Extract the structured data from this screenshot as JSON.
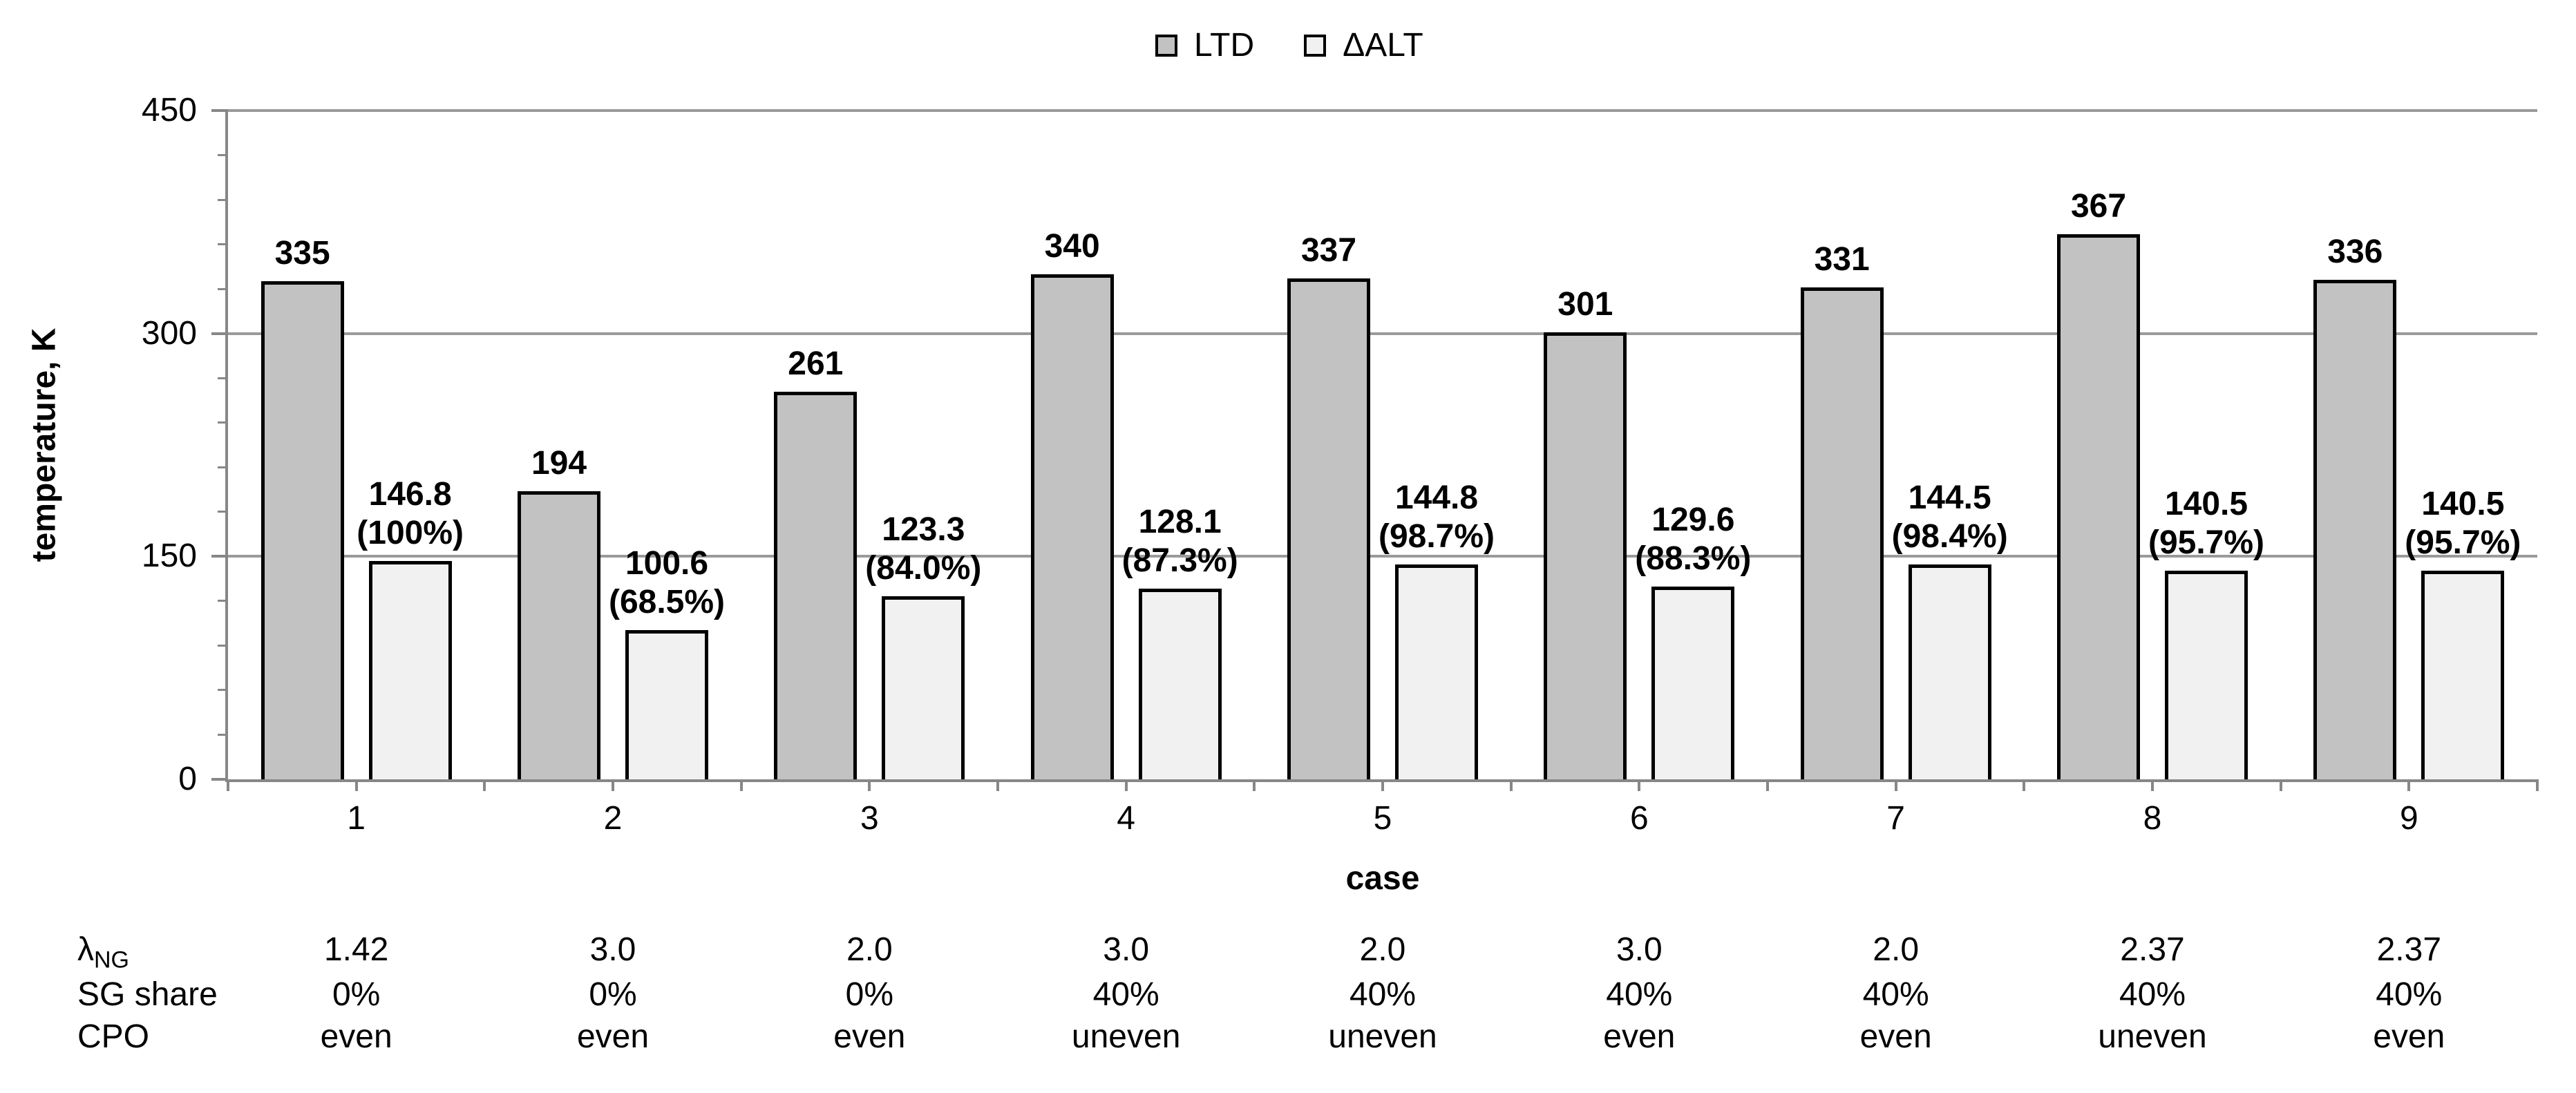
{
  "chart_data": {
    "type": "bar",
    "title": "",
    "categories": [
      "1",
      "2",
      "3",
      "4",
      "5",
      "6",
      "7",
      "8",
      "9"
    ],
    "series": [
      {
        "name": "LTD",
        "values": [
          335,
          194,
          261,
          340,
          337,
          301,
          331,
          367,
          336
        ],
        "labels": [
          "335",
          "194",
          "261",
          "340",
          "337",
          "301",
          "331",
          "367",
          "336"
        ]
      },
      {
        "name": "ΔALT",
        "values": [
          146.8,
          100.6,
          123.3,
          128.1,
          144.8,
          129.6,
          144.5,
          140.5,
          140.5
        ],
        "labels": [
          "146.8",
          "100.6",
          "123.3",
          "128.1",
          "144.8",
          "129.6",
          "144.5",
          "140.5",
          "140.5"
        ],
        "sublabels": [
          "(100%)",
          "(68.5%)",
          "(84.0%)",
          "(87.3%)",
          "(98.7%)",
          "(88.3%)",
          "(98.4%)",
          "(95.7%)",
          "(95.7%)"
        ]
      }
    ],
    "xlabel": "case",
    "ylabel": "temperature, K",
    "ylim": [
      0,
      450
    ],
    "y_major_ticks": [
      0,
      150,
      300,
      450
    ],
    "y_tick_labels": [
      "0",
      "150",
      "300",
      "450"
    ],
    "y_minor_step": 30,
    "grid": "horizontal-major",
    "legend_position": "top-center"
  },
  "annotation_table": {
    "rows": [
      {
        "key": "lambda-ng",
        "label_main": "λ",
        "label_sub": "NG",
        "values": [
          "1.42",
          "3.0",
          "2.0",
          "3.0",
          "2.0",
          "3.0",
          "2.0",
          "2.37",
          "2.37"
        ]
      },
      {
        "key": "sg-share",
        "label_main": "SG share",
        "label_sub": "",
        "values": [
          "0%",
          "0%",
          "0%",
          "40%",
          "40%",
          "40%",
          "40%",
          "40%",
          "40%"
        ]
      },
      {
        "key": "cpo",
        "label_main": "CPO",
        "label_sub": "",
        "values": [
          "even",
          "even",
          "even",
          "uneven",
          "uneven",
          "even",
          "even",
          "uneven",
          "even"
        ]
      }
    ]
  },
  "colors": {
    "ltd_fill": "#c2c2c2",
    "alt_fill": "#f1f1f1",
    "bar_border": "#000000",
    "gridline": "#9a9a9a",
    "axis": "#878787",
    "text": "#000000",
    "background": "#ffffff"
  }
}
